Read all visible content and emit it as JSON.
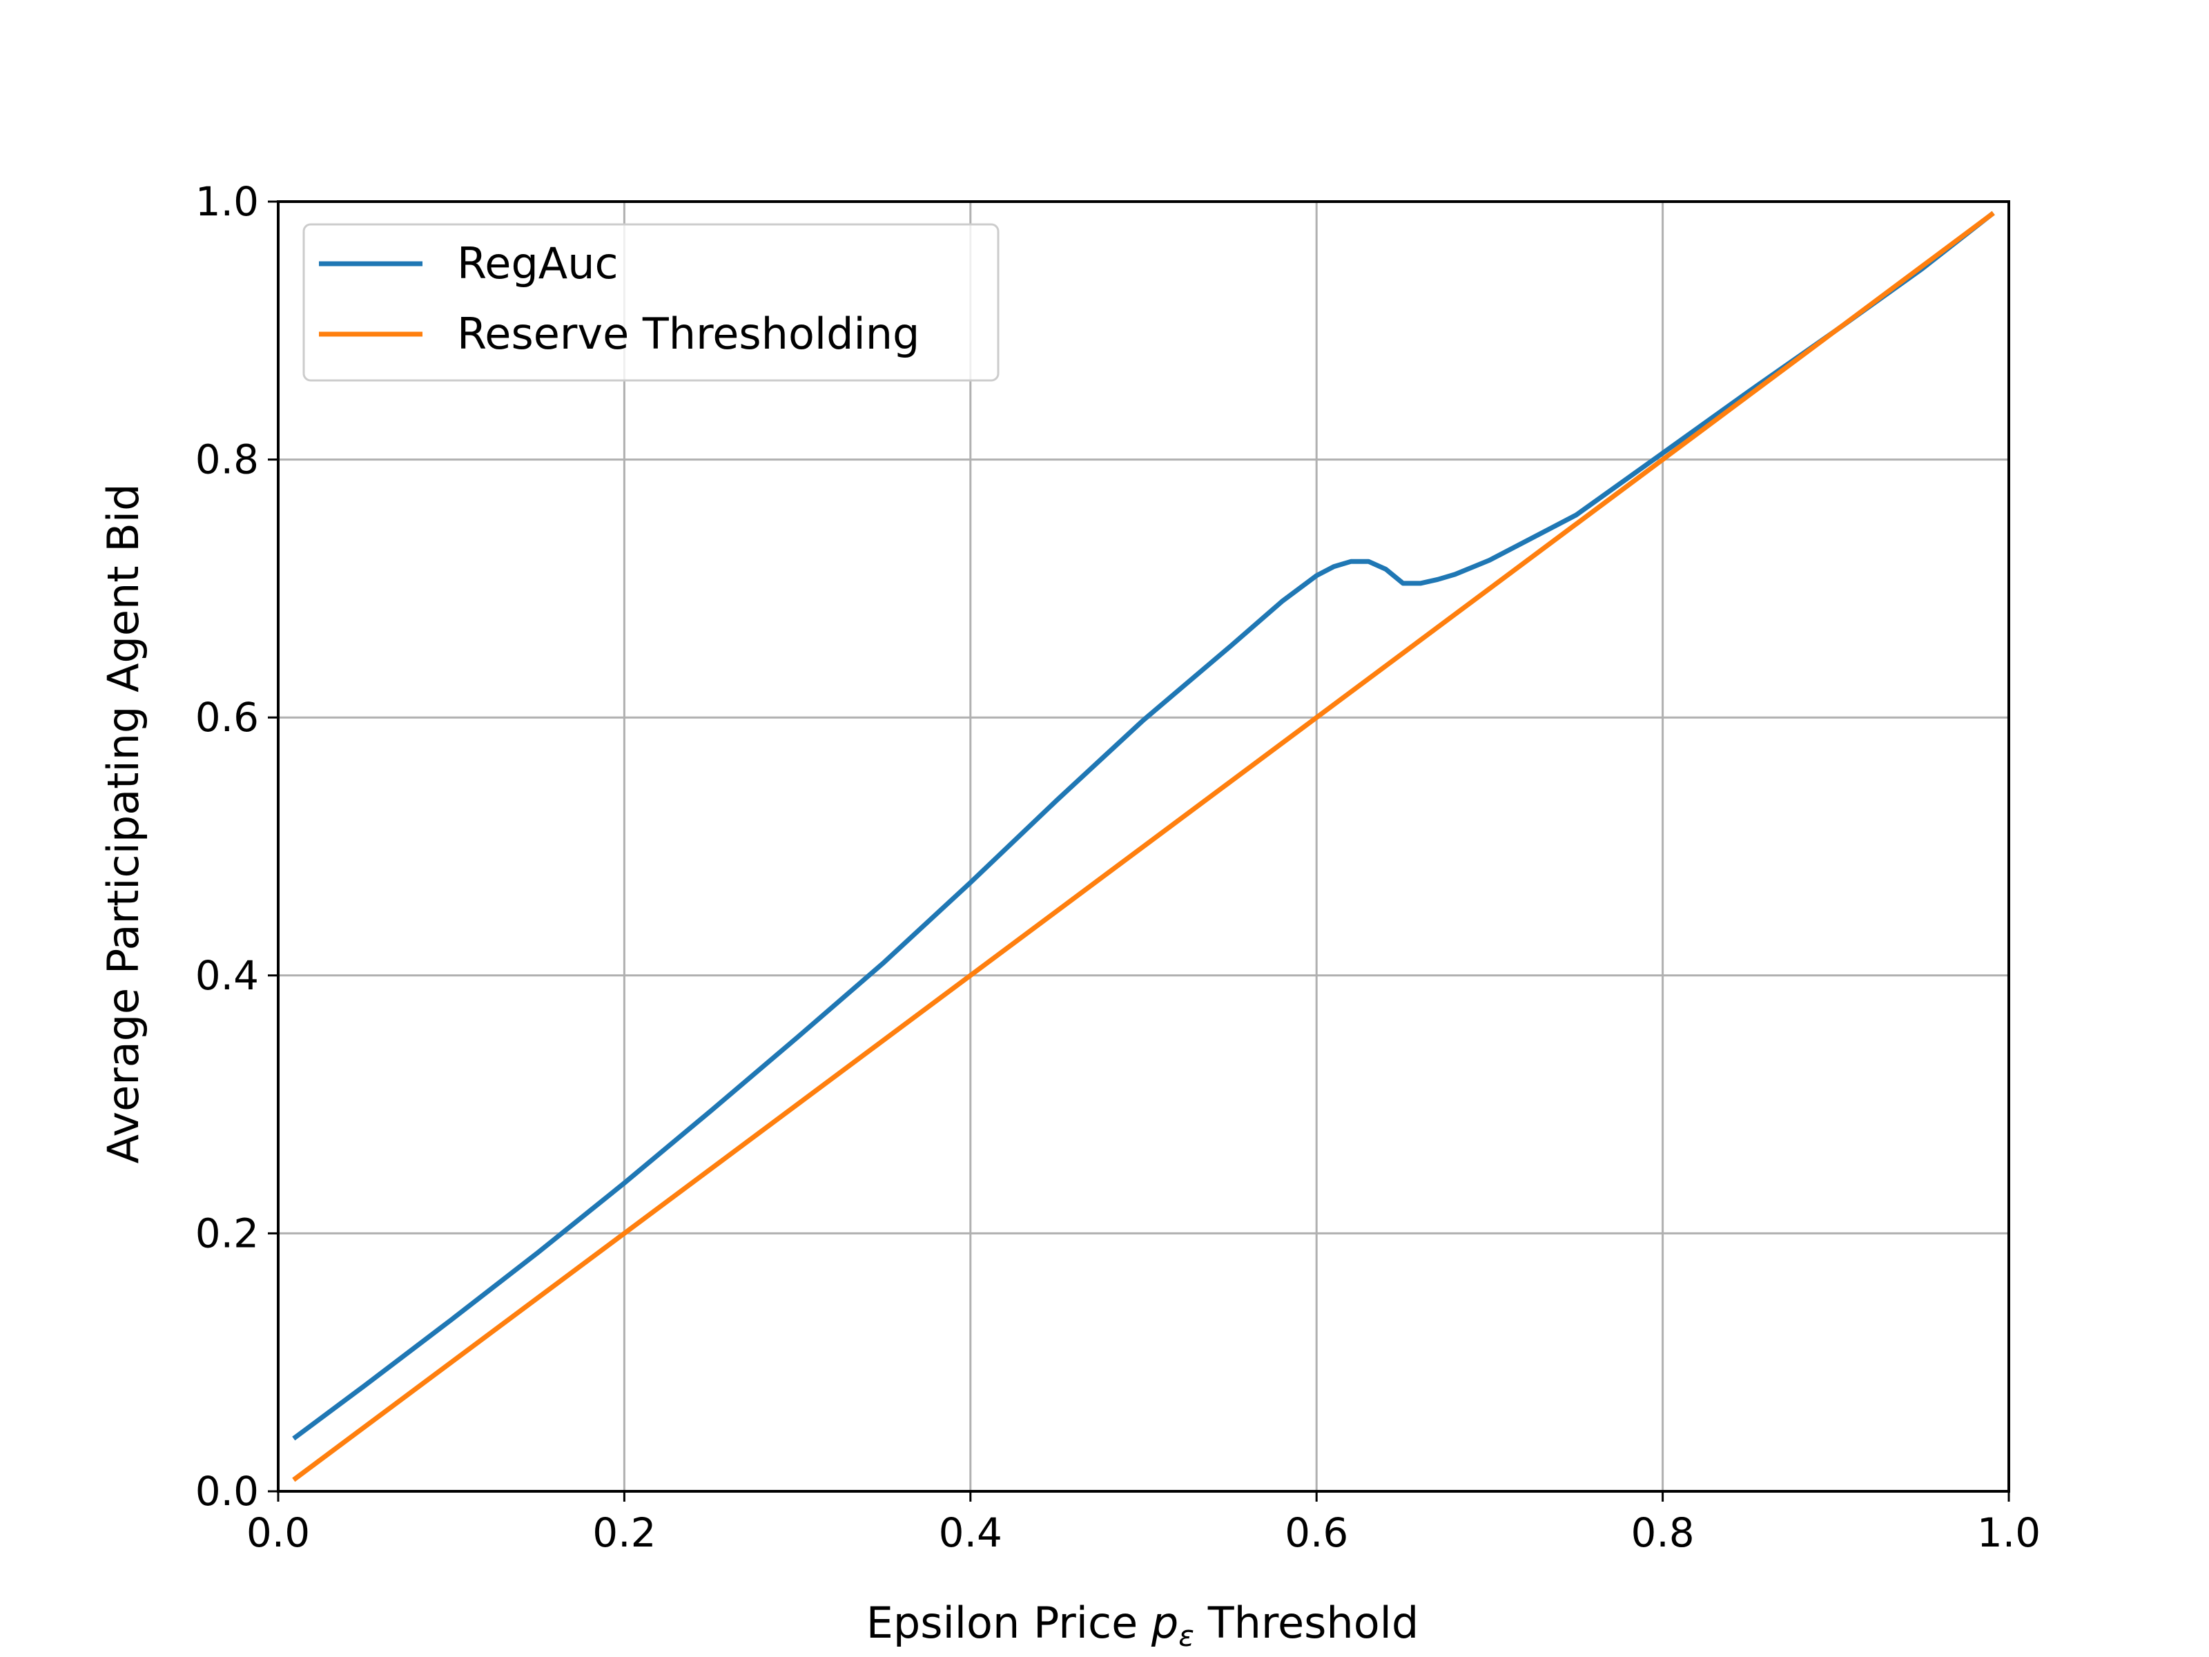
{
  "chart_data": {
    "type": "line",
    "xlabel_prefix": "Epsilon Price ",
    "xlabel_symbol": "p",
    "xlabel_subscript": "ε",
    "xlabel_suffix": " Threshold",
    "ylabel": "Average Participating Agent Bid",
    "xlim": [
      0.0,
      1.0
    ],
    "ylim": [
      0.0,
      1.0
    ],
    "xticks": [
      0.0,
      0.2,
      0.4,
      0.6,
      0.8,
      1.0
    ],
    "yticks": [
      0.0,
      0.2,
      0.4,
      0.6,
      0.8,
      1.0
    ],
    "xtick_labels": [
      "0.0",
      "0.2",
      "0.4",
      "0.6",
      "0.8",
      "1.0"
    ],
    "ytick_labels": [
      "0.0",
      "0.2",
      "0.4",
      "0.6",
      "0.8",
      "1.0"
    ],
    "grid": true,
    "legend_position": "top-left",
    "series": [
      {
        "name": "RegAuc",
        "color": "#1f77b4",
        "x": [
          0.01,
          0.05,
          0.1,
          0.15,
          0.2,
          0.25,
          0.3,
          0.35,
          0.4,
          0.45,
          0.5,
          0.55,
          0.58,
          0.6,
          0.61,
          0.62,
          0.63,
          0.64,
          0.65,
          0.66,
          0.67,
          0.68,
          0.7,
          0.75,
          0.8,
          0.85,
          0.9,
          0.95,
          0.99
        ],
        "y": [
          0.042,
          0.082,
          0.133,
          0.185,
          0.239,
          0.295,
          0.352,
          0.41,
          0.472,
          0.536,
          0.598,
          0.655,
          0.69,
          0.71,
          0.717,
          0.721,
          0.721,
          0.715,
          0.704,
          0.704,
          0.707,
          0.711,
          0.722,
          0.757,
          0.805,
          0.853,
          0.9,
          0.948,
          0.99
        ]
      },
      {
        "name": "Reserve Thresholding",
        "color": "#ff7f0e",
        "x": [
          0.01,
          0.99
        ],
        "y": [
          0.01,
          0.99
        ]
      }
    ]
  }
}
